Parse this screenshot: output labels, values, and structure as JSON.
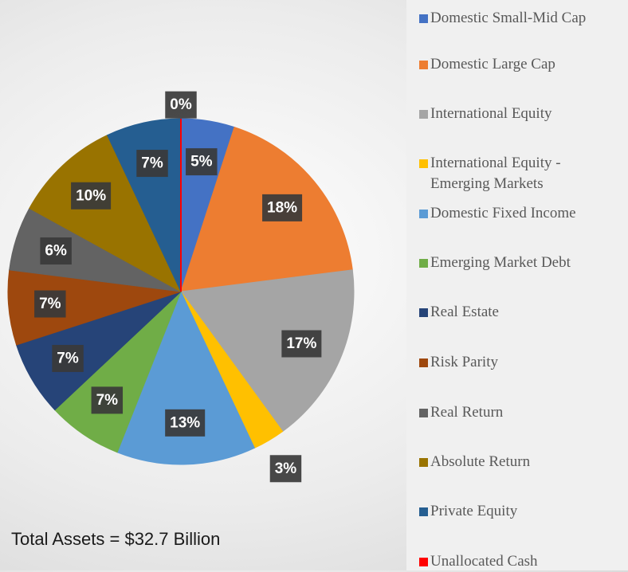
{
  "chart_data": {
    "type": "pie",
    "categories": [
      "Domestic Small-Mid Cap",
      "Domestic Large Cap",
      "International Equity",
      "International Equity - Emerging Markets",
      "Domestic Fixed Income",
      "Emerging Market Debt",
      "Real Estate",
      "Risk Parity",
      "Real Return",
      "Absolute Return",
      "Private Equity",
      "Unallocated Cash"
    ],
    "values": [
      5,
      18,
      17,
      3,
      13,
      7,
      7,
      7,
      6,
      10,
      7,
      0
    ],
    "value_labels": [
      "5%",
      "18%",
      "17%",
      "3%",
      "13%",
      "7%",
      "7%",
      "7%",
      "6%",
      "10%",
      "7%",
      "0%"
    ],
    "colors": [
      "#4472c4",
      "#ed7d31",
      "#a5a5a5",
      "#ffc000",
      "#5b9bd5",
      "#70ad47",
      "#264478",
      "#9e480e",
      "#636363",
      "#997300",
      "#255e91",
      "#ff0000"
    ],
    "annotation": "Total Assets = $32.7 Billion",
    "legend": "right"
  }
}
